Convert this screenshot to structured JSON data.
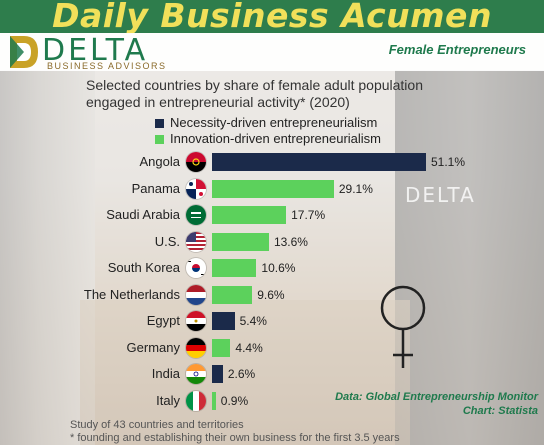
{
  "header": {
    "title": "Daily Business Acumen"
  },
  "brand": {
    "name": "DELTA",
    "tagline": "BUSINESS ADVISORS",
    "watermark_name": "DELTA"
  },
  "section_label": "Female Entrepreneurs",
  "colors": {
    "necessity": "#1b2a4a",
    "innovation": "#5cd15c",
    "header_bg": "#2e7d4c",
    "header_text": "#f1e05a",
    "brand_green": "#1f7a4d"
  },
  "chart_data": {
    "type": "bar",
    "orientation": "horizontal",
    "title": "Selected countries by share of female adult population engaged in entrepreneurial activity* (2020)",
    "legend": [
      {
        "name": "Necessity-driven entrepreneurialism",
        "color": "#1b2a4a"
      },
      {
        "name": "Innovation-driven entrepreneurialism",
        "color": "#5cd15c"
      }
    ],
    "legend_position": "top",
    "categories": [
      "Angola",
      "Panama",
      "Saudi Arabia",
      "U.S.",
      "South Korea",
      "The Netherlands",
      "Egypt",
      "Germany",
      "India",
      "Italy"
    ],
    "values": [
      51.1,
      29.1,
      17.7,
      13.6,
      10.6,
      9.6,
      5.4,
      4.4,
      2.6,
      0.9
    ],
    "value_labels": [
      "51.1%",
      "29.1%",
      "17.7%",
      "13.6%",
      "10.6%",
      "9.6%",
      "5.4%",
      "4.4%",
      "2.6%",
      "0.9%"
    ],
    "series_type": [
      "necessity",
      "innovation",
      "innovation",
      "innovation",
      "innovation",
      "innovation",
      "necessity",
      "innovation",
      "necessity",
      "innovation"
    ],
    "flags": [
      "angola-flag-icon",
      "panama-flag-icon",
      "saudi-arabia-flag-icon",
      "us-flag-icon",
      "south-korea-flag-icon",
      "netherlands-flag-icon",
      "egypt-flag-icon",
      "germany-flag-icon",
      "india-flag-icon",
      "italy-flag-icon"
    ],
    "xlim": [
      0,
      51.1
    ],
    "grid": false
  },
  "footnotes": [
    "Study of 43 countries and territories",
    "* founding and establishing their own business for the first 3.5 years"
  ],
  "source": {
    "data": "Data: Global Entrepreneurship Monitor",
    "chart": "Chart: Statista"
  },
  "decor": {
    "female_symbol": "female-symbol-icon"
  }
}
